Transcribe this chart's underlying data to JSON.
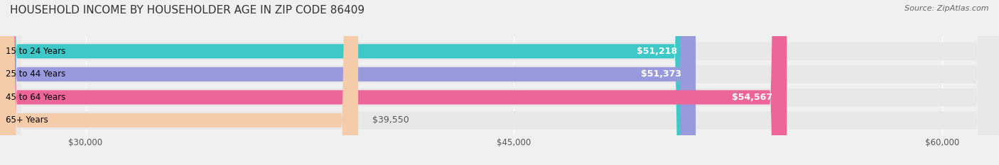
{
  "title": "HOUSEHOLD INCOME BY HOUSEHOLDER AGE IN ZIP CODE 86409",
  "source": "Source: ZipAtlas.com",
  "categories": [
    "15 to 24 Years",
    "25 to 44 Years",
    "45 to 64 Years",
    "65+ Years"
  ],
  "values": [
    51218,
    51373,
    54567,
    39550
  ],
  "bar_colors": [
    "#3ec8c8",
    "#9999dd",
    "#ee6699",
    "#f5ccaa"
  ],
  "bar_labels": [
    "$51,218",
    "$51,373",
    "$54,567",
    "$39,550"
  ],
  "xlim": [
    27000,
    62000
  ],
  "xticks": [
    30000,
    45000,
    60000
  ],
  "xtick_labels": [
    "$30,000",
    "$45,000",
    "$60,000"
  ],
  "background_color": "#f0f0f0",
  "bar_bg_color": "#e8e8e8",
  "title_fontsize": 11,
  "source_fontsize": 8,
  "label_fontsize": 9,
  "tick_fontsize": 8.5,
  "cat_fontsize": 8.5
}
